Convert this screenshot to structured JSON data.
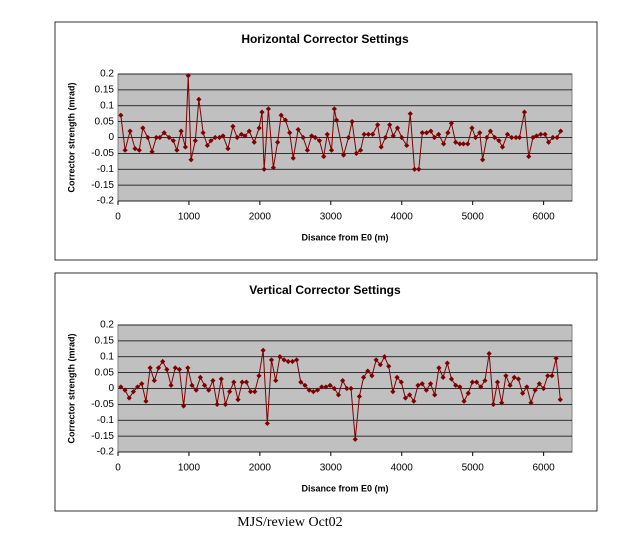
{
  "chart_data": [
    {
      "type": "line",
      "title": "Horizontal Corrector Settings",
      "x_label": "Disance from E0 (m)",
      "y_label": "Corrector strength (mrad)",
      "color": "#800000",
      "background": "#c0c0c0",
      "grid": true,
      "xlim": [
        0,
        6400
      ],
      "xticks": [
        0,
        1000,
        2000,
        3000,
        4000,
        5000,
        6000
      ],
      "ylim": [
        -0.2,
        0.2
      ],
      "yticks": [
        0.2,
        0.15,
        0.1,
        0.05,
        0,
        -0.05,
        -0.1,
        -0.15,
        -0.2
      ],
      "x": [
        40,
        100,
        170,
        240,
        300,
        350,
        420,
        480,
        540,
        590,
        650,
        720,
        780,
        830,
        890,
        950,
        990,
        1030,
        1090,
        1140,
        1200,
        1260,
        1310,
        1370,
        1430,
        1480,
        1550,
        1620,
        1680,
        1740,
        1790,
        1850,
        1920,
        1990,
        2030,
        2060,
        2120,
        2190,
        2250,
        2300,
        2360,
        2420,
        2470,
        2540,
        2610,
        2670,
        2730,
        2780,
        2840,
        2900,
        2950,
        3010,
        3050,
        3080,
        3180,
        3250,
        3300,
        3360,
        3420,
        3470,
        3530,
        3590,
        3660,
        3710,
        3770,
        3830,
        3880,
        3940,
        4000,
        4070,
        4120,
        4180,
        4240,
        4290,
        4350,
        4410,
        4460,
        4520,
        4590,
        4650,
        4700,
        4760,
        4820,
        4870,
        4930,
        4990,
        5040,
        5100,
        5140,
        5200,
        5250,
        5310,
        5370,
        5420,
        5490,
        5550,
        5610,
        5660,
        5730,
        5790,
        5850,
        5900,
        5960,
        6020,
        6070,
        6130,
        6190,
        6240
      ],
      "values": [
        0.07,
        -0.04,
        0.02,
        -0.035,
        -0.04,
        0.03,
        0,
        -0.045,
        0,
        0,
        0.015,
        0,
        -0.01,
        -0.04,
        0.02,
        -0.03,
        0.195,
        -0.07,
        -0.01,
        0.12,
        0.015,
        -0.025,
        -0.01,
        0,
        0,
        0.005,
        -0.035,
        0.035,
        0,
        0.01,
        0.005,
        0.02,
        -0.015,
        0.03,
        0.08,
        -0.1,
        0.09,
        -0.095,
        -0.015,
        0.07,
        0.055,
        0.015,
        -0.065,
        0.025,
        0,
        -0.04,
        0.005,
        0,
        -0.01,
        -0.06,
        0.01,
        -0.04,
        0.09,
        0.055,
        -0.055,
        0,
        0.05,
        -0.05,
        -0.04,
        0.01,
        0.01,
        0.01,
        0.04,
        -0.03,
        0,
        0.04,
        0.005,
        0.03,
        0,
        -0.025,
        0.075,
        -0.1,
        -0.1,
        0.015,
        0.015,
        0.02,
        0,
        0.01,
        -0.02,
        0.015,
        0.045,
        -0.015,
        -0.02,
        -0.02,
        -0.02,
        0.03,
        0,
        0.015,
        -0.07,
        0,
        0.02,
        0,
        -0.01,
        -0.03,
        0.01,
        0,
        0,
        0,
        0.08,
        -0.06,
        0,
        0.005,
        0.01,
        0.01,
        -0.015,
        0,
        0,
        0.02
      ]
    },
    {
      "type": "line",
      "title": "Vertical Corrector Settings",
      "x_label": "Disance from E0 (m)",
      "y_label": "Corrector strength (mrad)",
      "color": "#800000",
      "background": "#c0c0c0",
      "grid": true,
      "xlim": [
        0,
        6400
      ],
      "xticks": [
        0,
        1000,
        2000,
        3000,
        4000,
        5000,
        6000
      ],
      "ylim": [
        -0.2,
        0.2
      ],
      "yticks": [
        0.2,
        0.15,
        0.1,
        0.05,
        0,
        -0.05,
        -0.1,
        -0.15,
        -0.2
      ],
      "x": [
        40,
        99,
        158,
        217,
        276,
        335,
        394,
        453,
        512,
        571,
        630,
        689,
        748,
        807,
        866,
        925,
        984,
        1043,
        1102,
        1161,
        1220,
        1279,
        1338,
        1397,
        1456,
        1515,
        1574,
        1633,
        1692,
        1751,
        1810,
        1869,
        1928,
        1987,
        2046,
        2105,
        2164,
        2223,
        2282,
        2341,
        2400,
        2459,
        2518,
        2577,
        2636,
        2695,
        2754,
        2813,
        2872,
        2931,
        2990,
        3049,
        3108,
        3167,
        3226,
        3285,
        3344,
        3403,
        3462,
        3521,
        3580,
        3639,
        3698,
        3757,
        3816,
        3875,
        3934,
        3993,
        4052,
        4111,
        4170,
        4229,
        4288,
        4347,
        4406,
        4465,
        4524,
        4583,
        4642,
        4701,
        4760,
        4819,
        4878,
        4937,
        4996,
        5055,
        5114,
        5173,
        5232,
        5291,
        5350,
        5409,
        5468,
        5527,
        5586,
        5645,
        5704,
        5763,
        5822,
        5881,
        5940,
        5999,
        6058,
        6117,
        6176,
        6235
      ],
      "values": [
        0.005,
        -0.005,
        -0.03,
        -0.01,
        0.005,
        0.015,
        -0.04,
        0.065,
        0.025,
        0.065,
        0.085,
        0.06,
        0.01,
        0.065,
        0.06,
        -0.055,
        0.065,
        0.01,
        -0.005,
        0.035,
        0.01,
        -0.005,
        0.025,
        -0.05,
        0.03,
        -0.05,
        -0.01,
        0.02,
        -0.035,
        0.02,
        0.02,
        -0.01,
        -0.01,
        0.04,
        0.12,
        -0.11,
        0.09,
        0.025,
        0.1,
        0.09,
        0.085,
        0.085,
        0.09,
        0.02,
        0.01,
        -0.005,
        -0.01,
        -0.005,
        0.005,
        0.005,
        0.01,
        0,
        -0.02,
        0.025,
        0,
        0,
        -0.16,
        -0.025,
        0.035,
        0.055,
        0.04,
        0.09,
        0.075,
        0.1,
        0.07,
        -0.01,
        0.035,
        0.02,
        -0.03,
        -0.02,
        -0.04,
        0.01,
        0.015,
        -0.005,
        0.015,
        -0.02,
        0.065,
        0.035,
        0.08,
        0.03,
        0.01,
        0.005,
        -0.04,
        -0.015,
        0.02,
        0.02,
        0.005,
        0.025,
        0.11,
        -0.05,
        0.02,
        -0.045,
        0.04,
        0.01,
        0.035,
        0.03,
        -0.015,
        0.005,
        -0.045,
        -0.005,
        0.015,
        0,
        0.04,
        0.04,
        0.095,
        -0.035
      ]
    }
  ],
  "footer": "MJS/review Oct02"
}
